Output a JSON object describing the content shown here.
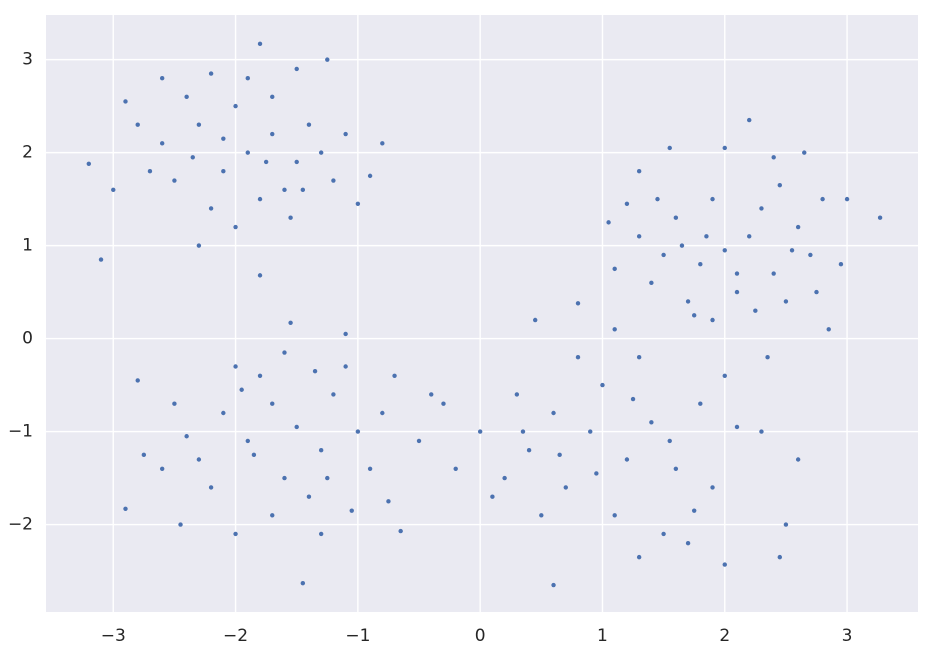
{
  "chart_data": {
    "type": "scatter",
    "color": "#4c72b0",
    "grid": true,
    "xlim": [
      -3.55,
      3.58
    ],
    "ylim": [
      -2.94,
      3.48
    ],
    "xticks": [
      {
        "value": -3,
        "label": "−3"
      },
      {
        "value": -2,
        "label": "−2"
      },
      {
        "value": -1,
        "label": "−1"
      },
      0,
      1,
      2,
      3
    ],
    "yticks": [
      {
        "value": -2,
        "label": "−2"
      },
      {
        "value": -1,
        "label": "−1"
      },
      0,
      1,
      2,
      3
    ],
    "x": [
      -1.9,
      -2.1,
      -1.7,
      -2.3,
      -1.5,
      -2.5,
      -1.8,
      -2.0,
      -1.4,
      -2.6,
      -1.6,
      -2.2,
      -1.3,
      -2.4,
      -1.9,
      -2.7,
      -1.2,
      -2.0,
      -1.7,
      -2.8,
      -1.1,
      -2.3,
      -1.5,
      -3.0,
      -1.8,
      -3.1,
      -1.8,
      -3.2,
      -0.8,
      -2.6,
      -1.0,
      -2.2,
      -1.55,
      -2.9,
      -1.25,
      -0.9,
      -2.1,
      -1.75,
      -2.35,
      -1.45,
      2.0,
      1.8,
      2.2,
      1.6,
      2.4,
      1.9,
      2.1,
      1.5,
      2.6,
      1.7,
      2.3,
      1.3,
      2.5,
      1.4,
      2.7,
      1.9,
      2.8,
      1.2,
      2.2,
      3.27,
      1.55,
      2.4,
      2.65,
      1.1,
      3.0,
      2.85,
      2.35,
      1.3,
      1.05,
      2.0,
      1.75,
      2.55,
      2.95,
      1.85,
      2.1,
      2.45,
      1.65,
      2.75,
      1.45,
      2.25,
      -1.5,
      -1.7,
      -1.3,
      -1.9,
      -1.2,
      -2.1,
      -1.6,
      -1.0,
      -1.8,
      -1.4,
      -2.3,
      -0.9,
      -2.0,
      -1.1,
      -1.7,
      -2.5,
      -0.8,
      -1.3,
      -2.2,
      -1.55,
      -1.1,
      -1.45,
      -2.9,
      -0.65,
      -2.8,
      -2.6,
      -0.5,
      -0.4,
      -2.0,
      -2.45,
      -1.85,
      -1.35,
      -0.75,
      -1.95,
      -1.05,
      -2.4,
      -1.6,
      -0.7,
      -2.75,
      -1.25,
      0.9,
      0.6,
      1.2,
      0.4,
      1.0,
      0.7,
      1.4,
      0.3,
      1.6,
      0.8,
      0.2,
      1.1,
      1.8,
      0.5,
      1.3,
      0.0,
      1.9,
      1.5,
      0.8,
      0.6,
      2.0,
      2.45,
      1.3,
      2.5,
      2.6,
      1.7,
      2.1,
      2.3,
      -0.2,
      -0.3,
      0.1,
      1.1,
      0.45,
      1.55,
      0.95,
      2.0,
      0.35,
      1.25,
      1.75,
      0.65
    ],
    "values": [
      2.0,
      1.8,
      2.2,
      2.3,
      1.9,
      1.7,
      1.5,
      2.5,
      2.3,
      2.1,
      1.6,
      1.4,
      2.0,
      2.6,
      2.8,
      1.8,
      1.7,
      1.2,
      2.6,
      2.3,
      2.2,
      1.0,
      2.9,
      1.6,
      3.17,
      0.85,
      0.68,
      1.88,
      2.1,
      2.8,
      1.45,
      2.85,
      1.3,
      2.55,
      3.0,
      1.75,
      2.15,
      1.9,
      1.95,
      1.6,
      0.95,
      0.8,
      1.1,
      1.3,
      0.7,
      1.5,
      0.5,
      0.9,
      1.2,
      0.4,
      1.4,
      1.1,
      0.4,
      0.6,
      0.9,
      0.2,
      1.5,
      1.45,
      2.35,
      1.3,
      2.05,
      1.95,
      2.0,
      0.75,
      1.5,
      0.1,
      -0.2,
      1.8,
      1.25,
      2.05,
      0.25,
      0.95,
      0.8,
      1.1,
      0.7,
      1.65,
      1.0,
      0.5,
      1.5,
      0.3,
      -0.95,
      -0.7,
      -1.2,
      -1.1,
      -0.6,
      -0.8,
      -1.5,
      -1.0,
      -0.4,
      -1.7,
      -1.3,
      -1.4,
      -0.3,
      -0.3,
      -1.9,
      -0.7,
      -0.8,
      -2.1,
      -1.6,
      0.17,
      0.05,
      -2.63,
      -1.83,
      -2.07,
      -0.45,
      -1.4,
      -1.1,
      -0.6,
      -2.1,
      -2.0,
      -1.25,
      -0.35,
      -1.75,
      -0.55,
      -1.85,
      -1.05,
      -0.15,
      -0.4,
      -1.25,
      -1.5,
      -1.0,
      -0.8,
      -1.3,
      -1.2,
      -0.5,
      -1.6,
      -0.9,
      -0.6,
      -1.4,
      -0.2,
      -1.5,
      -1.9,
      -0.7,
      -1.9,
      -0.2,
      -1.0,
      -1.6,
      -2.1,
      0.38,
      -2.65,
      -2.43,
      -2.35,
      -2.35,
      -2.0,
      -1.3,
      -2.2,
      -0.95,
      -1.0,
      -1.4,
      -0.7,
      -1.7,
      0.1,
      0.2,
      -1.1,
      -1.45,
      -0.4,
      -1.0,
      -0.65,
      -1.85,
      -1.25
    ]
  }
}
